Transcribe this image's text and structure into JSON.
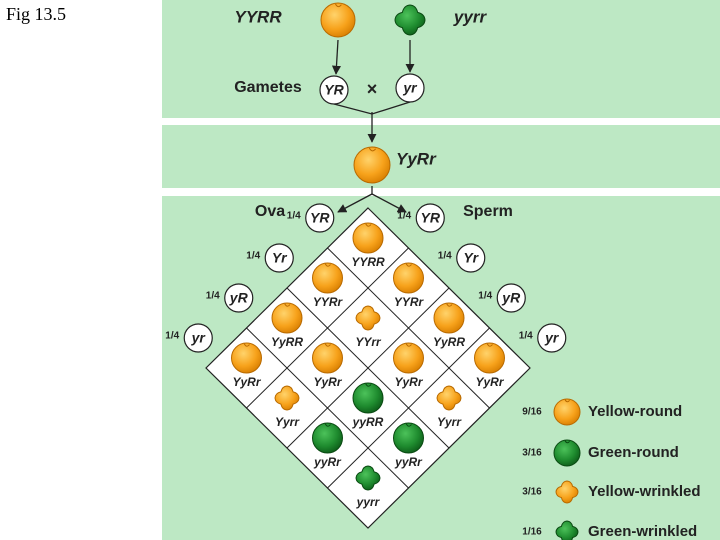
{
  "figure_label": "Fig 13.5",
  "parental": {
    "dominant": "YYRR",
    "recessive": "yyrr"
  },
  "gametes": {
    "label": "Gametes",
    "left": "YR",
    "cross": "×",
    "right": "yr"
  },
  "f1": "YyRr",
  "f2": {
    "ova_label": "Ova",
    "sperm_label": "Sperm",
    "ova": [
      {
        "fraction": "1/4",
        "gamete": "YR"
      },
      {
        "fraction": "1/4",
        "gamete": "Yr"
      },
      {
        "fraction": "1/4",
        "gamete": "yR"
      },
      {
        "fraction": "1/4",
        "gamete": "yr"
      }
    ],
    "sperm": [
      {
        "fraction": "1/4",
        "gamete": "YR"
      },
      {
        "fraction": "1/4",
        "gamete": "Yr"
      },
      {
        "fraction": "1/4",
        "gamete": "yR"
      },
      {
        "fraction": "1/4",
        "gamete": "yr"
      }
    ],
    "cells": [
      [
        "YYRR",
        "YYRr",
        "YyRR",
        "YyRr"
      ],
      [
        "YYRr",
        "YYrr",
        "YyRr",
        "Yyrr"
      ],
      [
        "YyRR",
        "YyRr",
        "yyRR",
        "yyRr"
      ],
      [
        "YyRr",
        "Yyrr",
        "yyRr",
        "yyrr"
      ]
    ]
  },
  "legend": [
    {
      "fraction": "9/16",
      "label": "Yellow-round"
    },
    {
      "fraction": "3/16",
      "label": "Green-round"
    },
    {
      "fraction": "3/16",
      "label": "Yellow-wrinkled"
    },
    {
      "fraction": "1/16",
      "label": "Green-wrinkled"
    }
  ]
}
